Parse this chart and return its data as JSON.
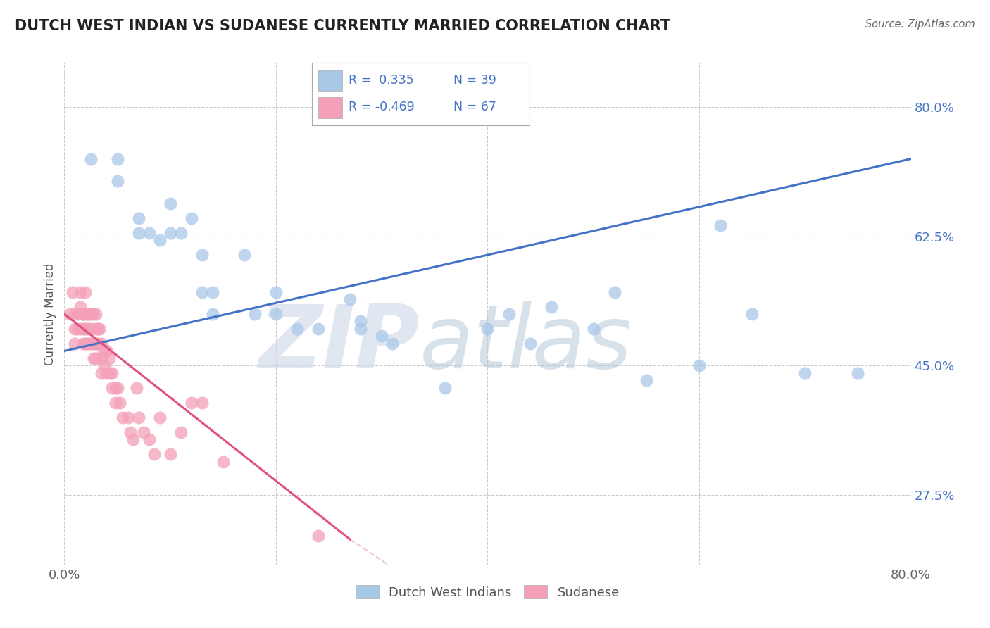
{
  "title": "DUTCH WEST INDIAN VS SUDANESE CURRENTLY MARRIED CORRELATION CHART",
  "source": "Source: ZipAtlas.com",
  "ylabel": "Currently Married",
  "legend_blue_R": "R =  0.335",
  "legend_blue_N": "N = 39",
  "legend_pink_R": "R = -0.469",
  "legend_pink_N": "N = 67",
  "blue_color": "#a8c8e8",
  "blue_line_color": "#4472c4",
  "pink_color": "#f4a0b8",
  "pink_line_color": "#e05080",
  "ytick_vals": [
    0.275,
    0.45,
    0.625,
    0.8
  ],
  "ytick_labels": [
    "27.5%",
    "45.0%",
    "62.5%",
    "80.0%"
  ],
  "xlim": [
    0.0,
    0.8
  ],
  "ylim": [
    0.18,
    0.86
  ],
  "blue_line": [
    0.0,
    0.47,
    0.8,
    0.73
  ],
  "pink_line_solid": [
    0.0,
    0.52,
    0.27,
    0.215
  ],
  "pink_line_dash": [
    0.27,
    0.215,
    0.8,
    -0.29
  ],
  "blue_x": [
    0.025,
    0.05,
    0.05,
    0.07,
    0.07,
    0.08,
    0.09,
    0.1,
    0.1,
    0.11,
    0.12,
    0.13,
    0.13,
    0.14,
    0.14,
    0.17,
    0.18,
    0.2,
    0.2,
    0.22,
    0.24,
    0.27,
    0.28,
    0.28,
    0.3,
    0.31,
    0.36,
    0.4,
    0.42,
    0.44,
    0.46,
    0.5,
    0.52,
    0.55,
    0.6,
    0.62,
    0.65,
    0.7,
    0.75
  ],
  "blue_y": [
    0.73,
    0.73,
    0.7,
    0.65,
    0.63,
    0.63,
    0.62,
    0.67,
    0.63,
    0.63,
    0.65,
    0.6,
    0.55,
    0.55,
    0.52,
    0.6,
    0.52,
    0.55,
    0.52,
    0.5,
    0.5,
    0.54,
    0.51,
    0.5,
    0.49,
    0.48,
    0.42,
    0.5,
    0.52,
    0.48,
    0.53,
    0.5,
    0.55,
    0.43,
    0.45,
    0.64,
    0.52,
    0.44,
    0.44
  ],
  "pink_x": [
    0.005,
    0.008,
    0.01,
    0.01,
    0.01,
    0.012,
    0.013,
    0.015,
    0.015,
    0.015,
    0.017,
    0.018,
    0.018,
    0.018,
    0.02,
    0.02,
    0.02,
    0.02,
    0.022,
    0.022,
    0.022,
    0.023,
    0.023,
    0.025,
    0.025,
    0.025,
    0.027,
    0.028,
    0.028,
    0.03,
    0.03,
    0.03,
    0.03,
    0.032,
    0.032,
    0.033,
    0.035,
    0.035,
    0.035,
    0.037,
    0.038,
    0.04,
    0.04,
    0.042,
    0.043,
    0.045,
    0.045,
    0.048,
    0.048,
    0.05,
    0.052,
    0.055,
    0.06,
    0.062,
    0.065,
    0.068,
    0.07,
    0.075,
    0.08,
    0.085,
    0.09,
    0.1,
    0.11,
    0.12,
    0.13,
    0.15,
    0.24
  ],
  "pink_y": [
    0.52,
    0.55,
    0.52,
    0.5,
    0.48,
    0.5,
    0.52,
    0.55,
    0.53,
    0.5,
    0.52,
    0.52,
    0.5,
    0.48,
    0.55,
    0.52,
    0.5,
    0.48,
    0.52,
    0.5,
    0.48,
    0.52,
    0.48,
    0.52,
    0.5,
    0.48,
    0.52,
    0.48,
    0.46,
    0.52,
    0.5,
    0.48,
    0.46,
    0.5,
    0.48,
    0.5,
    0.48,
    0.46,
    0.44,
    0.47,
    0.45,
    0.47,
    0.44,
    0.46,
    0.44,
    0.44,
    0.42,
    0.42,
    0.4,
    0.42,
    0.4,
    0.38,
    0.38,
    0.36,
    0.35,
    0.42,
    0.38,
    0.36,
    0.35,
    0.33,
    0.38,
    0.33,
    0.36,
    0.4,
    0.4,
    0.32,
    0.22
  ],
  "watermark_zip_color": "#d0dce8",
  "watermark_atlas_color": "#b8ccdc"
}
